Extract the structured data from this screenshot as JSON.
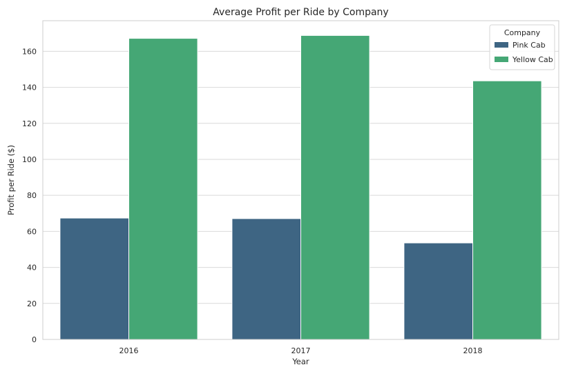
{
  "chart_data": {
    "type": "bar",
    "title": "Average Profit per Ride by Company",
    "xlabel": "Year",
    "ylabel": "Profit per Ride ($)",
    "categories": [
      "2016",
      "2017",
      "2018"
    ],
    "series": [
      {
        "name": "Pink Cab",
        "color": "#3e6583",
        "values": [
          67.4,
          67.1,
          53.6
        ]
      },
      {
        "name": "Yellow Cab",
        "color": "#45a775",
        "values": [
          167.2,
          168.8,
          143.6
        ]
      }
    ],
    "ylim": [
      0,
      177
    ],
    "yticks": [
      0,
      20,
      40,
      60,
      80,
      100,
      120,
      140,
      160
    ],
    "grid": true,
    "legend": {
      "title": "Company",
      "position": "top-right"
    }
  }
}
